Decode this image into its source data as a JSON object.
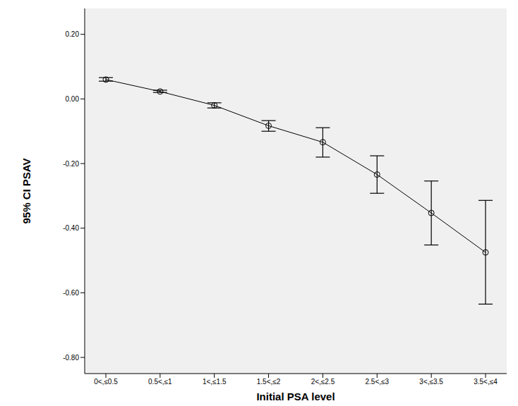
{
  "chart_data": {
    "type": "line",
    "x_label": "Initial PSA level",
    "y_label": "95% CI PSAV",
    "categories": [
      "0<,≤0.5",
      "0.5<,≤1",
      "1<,≤1.5",
      "1.5<,≤2",
      "2<,≤2.5",
      "2.5<,≤3",
      "3<,≤3.5",
      "3.5<,≤4"
    ],
    "values": [
      0.06,
      0.023,
      -0.02,
      -0.083,
      -0.134,
      -0.234,
      -0.353,
      -0.475
    ],
    "ci_low": [
      0.055,
      0.02,
      -0.028,
      -0.1,
      -0.18,
      -0.292,
      -0.452,
      -0.635
    ],
    "ci_high": [
      0.066,
      0.027,
      -0.012,
      -0.067,
      -0.089,
      -0.176,
      -0.254,
      -0.314
    ],
    "color": "#000000",
    "marker": "circle",
    "ylim": [
      -0.85,
      0.28
    ],
    "yticks": [
      {
        "value": -0.8,
        "label": "-0.80"
      },
      {
        "value": -0.6,
        "label": "-0.60"
      },
      {
        "value": -0.4,
        "label": "-0.40"
      },
      {
        "value": -0.2,
        "label": "-0.20"
      },
      {
        "value": 0,
        "label": "0.00"
      },
      {
        "value": 0.2,
        "label": "0.20"
      }
    ],
    "grid": false
  }
}
